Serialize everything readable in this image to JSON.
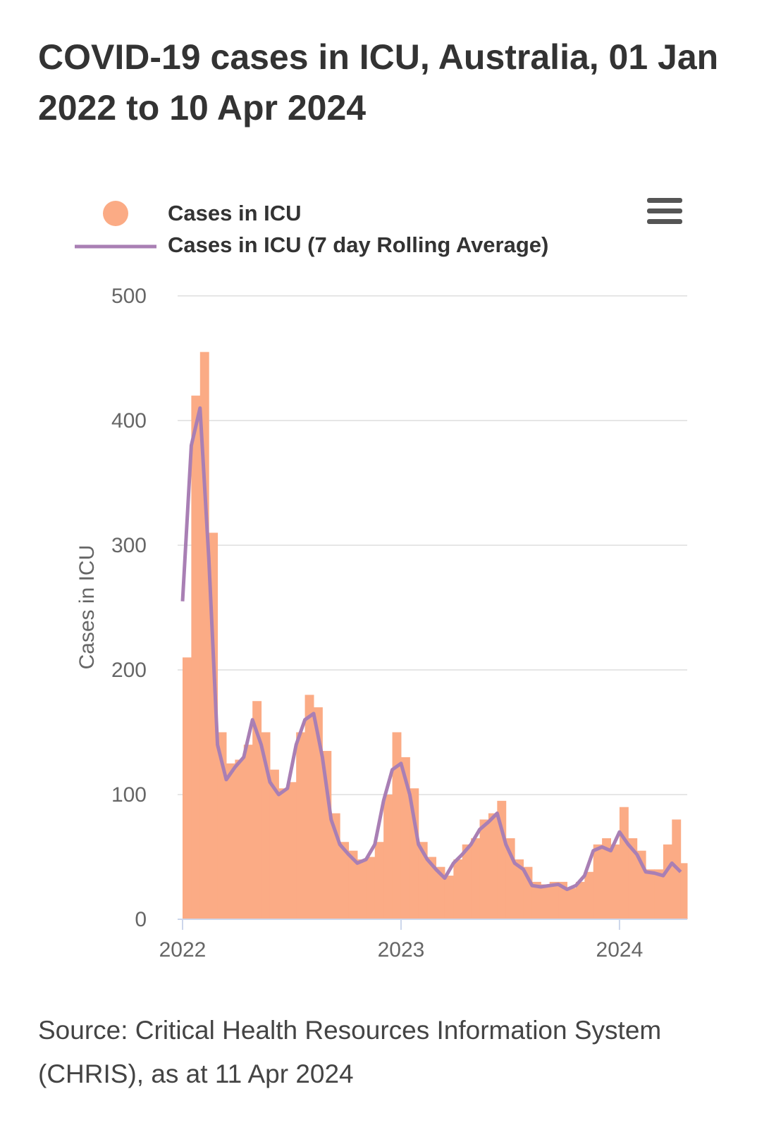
{
  "chart_data": {
    "type": "bar-line",
    "title": "COVID-19 cases in ICU, Australia, 01 Jan 2022 to 10 Apr 2024",
    "y_axis_label": "Cases in ICU",
    "source": "Source: Critical Health Resources Information System (CHRIS), as at 11 Apr 2024",
    "x": [
      2022.0,
      2022.04,
      2022.08,
      2022.12,
      2022.16,
      2022.2,
      2022.24,
      2022.28,
      2022.32,
      2022.36,
      2022.4,
      2022.44,
      2022.48,
      2022.52,
      2022.56,
      2022.6,
      2022.64,
      2022.68,
      2022.72,
      2022.76,
      2022.8,
      2022.84,
      2022.88,
      2022.92,
      2022.96,
      2023.0,
      2023.04,
      2023.08,
      2023.12,
      2023.16,
      2023.2,
      2023.24,
      2023.28,
      2023.32,
      2023.36,
      2023.4,
      2023.44,
      2023.48,
      2023.52,
      2023.56,
      2023.6,
      2023.64,
      2023.68,
      2023.72,
      2023.76,
      2023.8,
      2023.84,
      2023.88,
      2023.92,
      2023.96,
      2024.0,
      2024.04,
      2024.08,
      2024.12,
      2024.16,
      2024.2,
      2024.24,
      2024.28
    ],
    "series": [
      {
        "name": "Cases in ICU",
        "color": "#fbab85",
        "values": [
          210,
          420,
          455,
          310,
          150,
          125,
          128,
          140,
          175,
          150,
          120,
          105,
          110,
          150,
          180,
          170,
          135,
          85,
          62,
          55,
          48,
          50,
          62,
          100,
          150,
          130,
          105,
          62,
          50,
          42,
          35,
          48,
          60,
          65,
          80,
          85,
          95,
          65,
          48,
          42,
          30,
          28,
          30,
          30,
          25,
          30,
          38,
          60,
          65,
          60,
          90,
          65,
          55,
          40,
          40,
          60,
          80,
          45
        ]
      },
      {
        "name": "Cases in ICU (7 day Rolling Average)",
        "color": "#a97fb4",
        "values": [
          255,
          380,
          410,
          290,
          140,
          112,
          122,
          130,
          160,
          140,
          110,
          100,
          105,
          140,
          160,
          165,
          130,
          80,
          60,
          52,
          45,
          48,
          60,
          95,
          120,
          125,
          100,
          60,
          48,
          40,
          33,
          45,
          52,
          60,
          72,
          78,
          85,
          60,
          45,
          40,
          27,
          26,
          27,
          28,
          24,
          27,
          35,
          55,
          58,
          55,
          70,
          60,
          52,
          38,
          37,
          35,
          45,
          38
        ]
      }
    ],
    "xlim": [
      2022,
      2024.31
    ],
    "xticks": [
      2022,
      2023,
      2024
    ],
    "ylim": [
      0,
      500
    ],
    "yticks": [
      0,
      100,
      200,
      300,
      400,
      500
    ],
    "grid": true
  }
}
